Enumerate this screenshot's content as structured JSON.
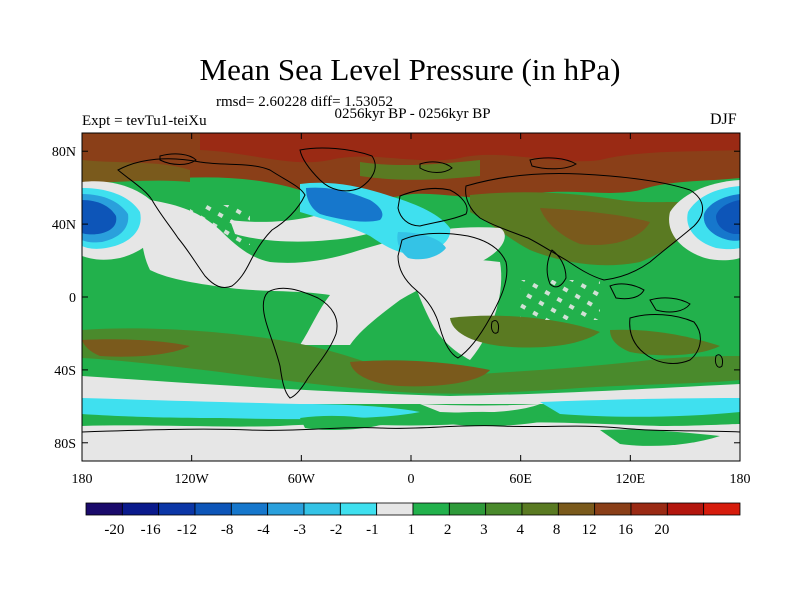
{
  "title": "Mean Sea Level Pressure (in hPa)",
  "stats": "rmsd= 2.60228 diff= 1.53052",
  "subtitle": "0256kyr BP - 0256kyr BP",
  "experiment": "Expt = tevTu1-teiXu",
  "season": "DJF",
  "map": {
    "lon_range": [
      -180,
      180
    ],
    "lat_range": [
      -90,
      90
    ],
    "lat_ticks": [
      {
        "value": 80,
        "label": "80N"
      },
      {
        "value": 40,
        "label": "40N"
      },
      {
        "value": 0,
        "label": "0"
      },
      {
        "value": -40,
        "label": "40S"
      },
      {
        "value": -80,
        "label": "80S"
      }
    ],
    "lon_ticks": [
      {
        "value": -180,
        "label": "180"
      },
      {
        "value": -120,
        "label": "120W"
      },
      {
        "value": -60,
        "label": "60W"
      },
      {
        "value": 0,
        "label": "0"
      },
      {
        "value": 60,
        "label": "60E"
      },
      {
        "value": 120,
        "label": "120E"
      },
      {
        "value": 180,
        "label": "180"
      }
    ]
  },
  "colorbar": {
    "colors": [
      "#1a0a6b",
      "#0a1a8c",
      "#0b36a6",
      "#0d55b8",
      "#1677cc",
      "#2aa0dc",
      "#34c3e6",
      "#3fe0ef",
      "#e6e6e6",
      "#22b14c",
      "#2e9a3a",
      "#4a8a2c",
      "#5a7a22",
      "#7a5a1c",
      "#8a3f18",
      "#9a2a14",
      "#b3160e",
      "#d61c0c"
    ],
    "labels": [
      "-20",
      "-16",
      "-12",
      "-8",
      "-4",
      "-3",
      "-2",
      "-1",
      "1",
      "2",
      "3",
      "4",
      "8",
      "12",
      "16",
      "20"
    ]
  }
}
